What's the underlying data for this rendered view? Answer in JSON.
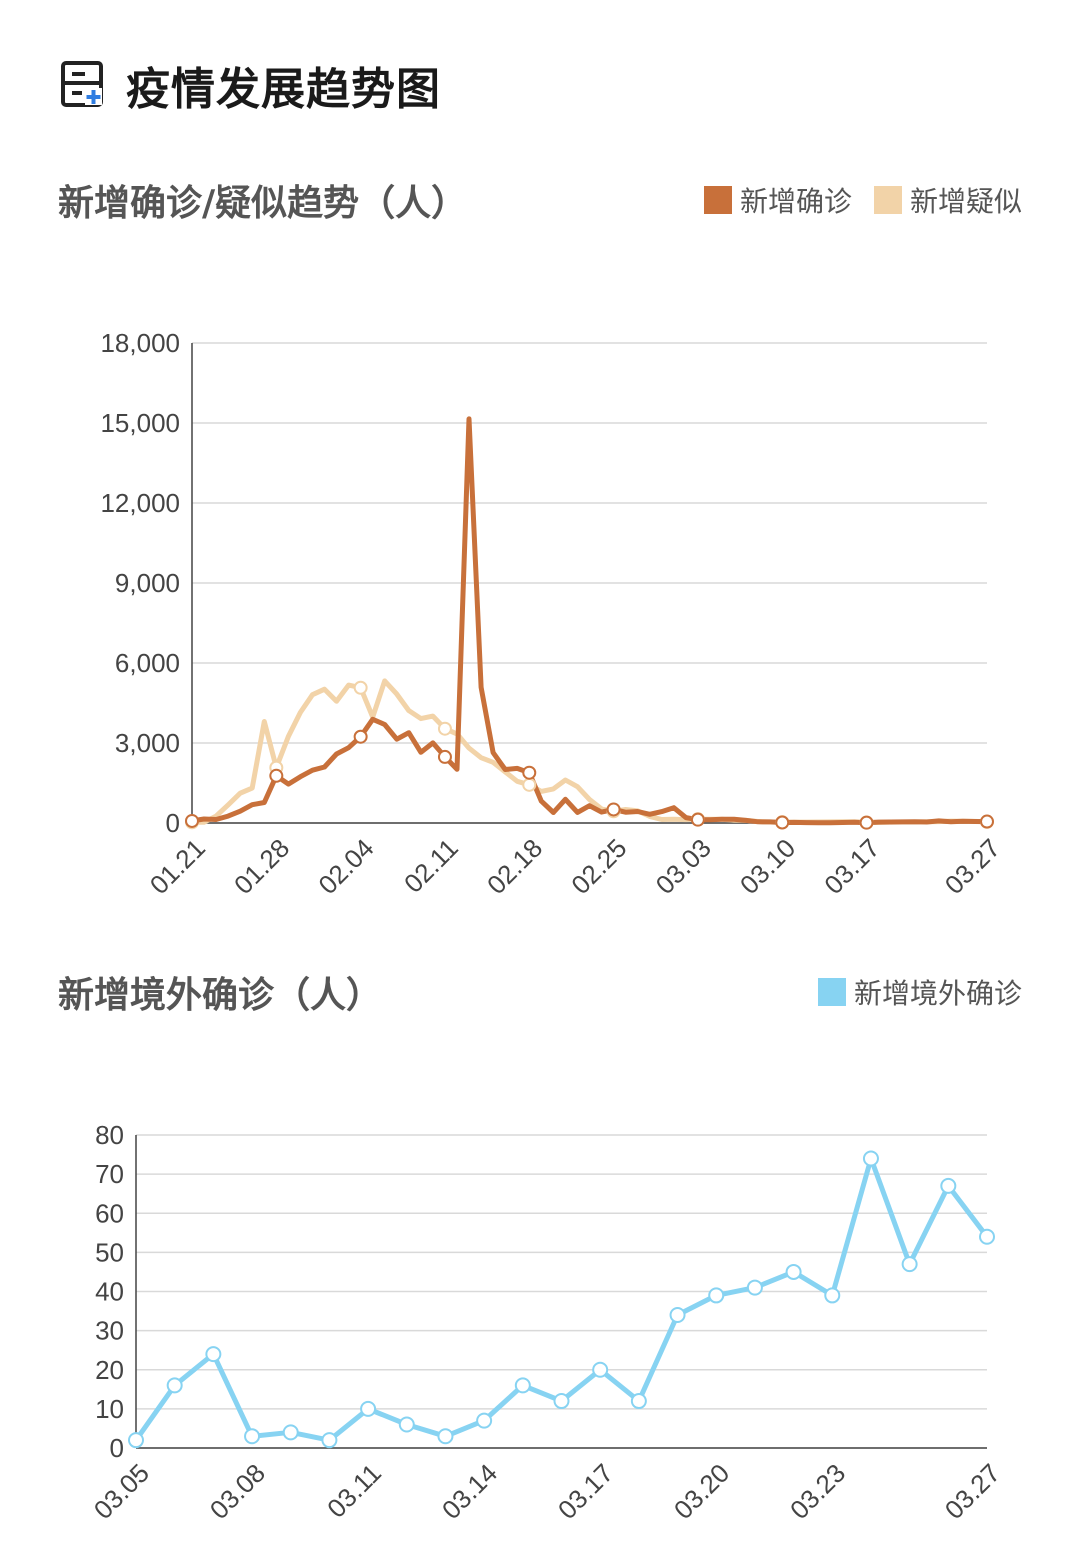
{
  "page": {
    "title": "疫情发展趋势图",
    "icon": "medical-report-icon"
  },
  "chart_data": [
    {
      "type": "line",
      "title": "新增确诊/疑似趋势（人）",
      "xlabel": "",
      "ylabel": "",
      "ylim": [
        0,
        18000
      ],
      "yticks": [
        "0",
        "3,000",
        "6,000",
        "9,000",
        "12,000",
        "15,000",
        "18,000"
      ],
      "ytick_values": [
        0,
        3000,
        6000,
        9000,
        12000,
        15000,
        18000
      ],
      "xticks": [
        "01.21",
        "01.28",
        "02.04",
        "02.11",
        "02.18",
        "02.25",
        "03.03",
        "03.10",
        "03.17",
        "03.27"
      ],
      "grid": true,
      "legend": "top-right",
      "x": [
        "01.21",
        "01.22",
        "01.23",
        "01.24",
        "01.25",
        "01.26",
        "01.27",
        "01.28",
        "01.29",
        "01.30",
        "01.31",
        "02.01",
        "02.02",
        "02.03",
        "02.04",
        "02.05",
        "02.06",
        "02.07",
        "02.08",
        "02.09",
        "02.10",
        "02.11",
        "02.12",
        "02.13",
        "02.14",
        "02.15",
        "02.16",
        "02.17",
        "02.18",
        "02.19",
        "02.20",
        "02.21",
        "02.22",
        "02.23",
        "02.24",
        "02.25",
        "02.26",
        "02.27",
        "02.28",
        "02.29",
        "03.01",
        "03.02",
        "03.03",
        "03.04",
        "03.05",
        "03.06",
        "03.07",
        "03.08",
        "03.09",
        "03.10",
        "03.11",
        "03.12",
        "03.13",
        "03.14",
        "03.15",
        "03.16",
        "03.17",
        "03.18",
        "03.19",
        "03.20",
        "03.21",
        "03.22",
        "03.23",
        "03.24",
        "03.25",
        "03.26",
        "03.27"
      ],
      "series": [
        {
          "name": "新增确诊",
          "color": "#c8703a",
          "values": [
            77,
            149,
            131,
            259,
            444,
            688,
            769,
            1771,
            1459,
            1737,
            1981,
            2099,
            2589,
            2825,
            3235,
            3887,
            3694,
            3143,
            3385,
            2652,
            3003,
            2478,
            2015,
            15152,
            5090,
            2641,
            2008,
            2048,
            1886,
            820,
            394,
            889,
            398,
            648,
            409,
            508,
            406,
            433,
            327,
            427,
            573,
            202,
            125,
            119,
            139,
            143,
            99,
            44,
            40,
            19,
            24,
            15,
            8,
            11,
            20,
            29,
            13,
            34,
            39,
            41,
            46,
            39,
            78,
            47,
            67,
            55,
            54
          ]
        },
        {
          "name": "新增疑似",
          "color": "#f2d3a8",
          "values": [
            27,
            27,
            257,
            680,
            1118,
            1309,
            3806,
            2077,
            3248,
            4148,
            4812,
            5019,
            4562,
            5173,
            5072,
            3971,
            5328,
            4833,
            4214,
            3916,
            4008,
            3536,
            3342,
            2807,
            2450,
            2277,
            1918,
            1563,
            1432,
            1185,
            1277,
            1614,
            1361,
            882,
            530,
            439,
            508,
            452,
            248,
            132,
            141,
            129,
            143,
            143,
            139,
            102,
            99,
            58,
            36,
            31,
            33,
            33,
            39,
            41,
            45,
            45,
            21,
            23,
            35,
            38,
            36,
            49,
            51,
            71,
            69,
            61,
            41
          ]
        }
      ]
    },
    {
      "type": "line",
      "title": "新增境外确诊（人）",
      "xlabel": "",
      "ylabel": "",
      "ylim": [
        0,
        80
      ],
      "yticks": [
        "0",
        "10",
        "20",
        "30",
        "40",
        "50",
        "60",
        "70",
        "80"
      ],
      "ytick_values": [
        0,
        10,
        20,
        30,
        40,
        50,
        60,
        70,
        80
      ],
      "xticks": [
        "03.05",
        "03.08",
        "03.11",
        "03.14",
        "03.17",
        "03.20",
        "03.23",
        "03.27"
      ],
      "grid": true,
      "legend": "top-right",
      "x": [
        "03.05",
        "03.06",
        "03.07",
        "03.08",
        "03.09",
        "03.10",
        "03.11",
        "03.12",
        "03.13",
        "03.14",
        "03.15",
        "03.16",
        "03.17",
        "03.18",
        "03.19",
        "03.20",
        "03.21",
        "03.22",
        "03.23",
        "03.24",
        "03.25",
        "03.26",
        "03.27"
      ],
      "series": [
        {
          "name": "新增境外确诊",
          "color": "#87d3f2",
          "values": [
            2,
            16,
            24,
            3,
            4,
            2,
            10,
            6,
            3,
            7,
            16,
            12,
            20,
            12,
            34,
            39,
            41,
            45,
            39,
            74,
            47,
            67,
            54
          ]
        }
      ]
    }
  ]
}
